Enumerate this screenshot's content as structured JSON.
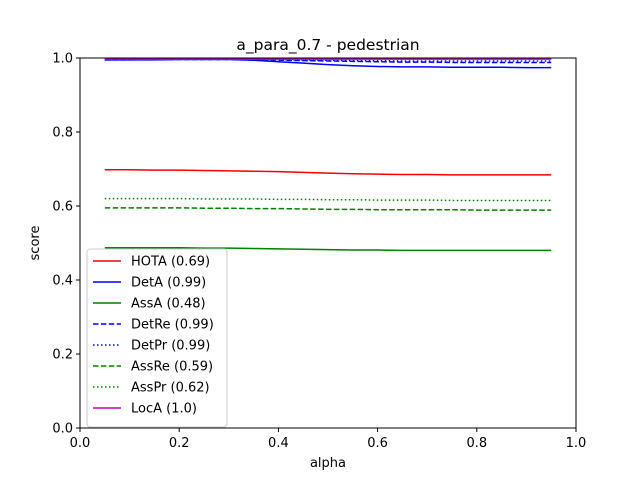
{
  "chart_data": {
    "type": "line",
    "title": "a_para_0.7 - pedestrian",
    "xlabel": "alpha",
    "ylabel": "score",
    "xlim": [
      0.0,
      1.0
    ],
    "ylim": [
      0.0,
      1.0
    ],
    "xticks": [
      "0.0",
      "0.2",
      "0.4",
      "0.6",
      "0.8",
      "1.0"
    ],
    "yticks": [
      "0.0",
      "0.2",
      "0.4",
      "0.6",
      "0.8",
      "1.0"
    ],
    "grid": false,
    "legend_position": "lower-left",
    "x": [
      0.05,
      0.1,
      0.15,
      0.2,
      0.25,
      0.3,
      0.35,
      0.4,
      0.45,
      0.5,
      0.55,
      0.6,
      0.65,
      0.7,
      0.75,
      0.8,
      0.85,
      0.9,
      0.95
    ],
    "series": [
      {
        "name": "HOTA (0.69)",
        "color": "#ff0000",
        "style": "solid",
        "values": [
          0.698,
          0.698,
          0.697,
          0.697,
          0.696,
          0.695,
          0.694,
          0.693,
          0.691,
          0.689,
          0.687,
          0.686,
          0.685,
          0.685,
          0.684,
          0.684,
          0.684,
          0.684,
          0.684
        ]
      },
      {
        "name": "DetA (0.99)",
        "color": "#0000ff",
        "style": "solid",
        "values": [
          0.995,
          0.995,
          0.995,
          0.996,
          0.996,
          0.996,
          0.994,
          0.99,
          0.986,
          0.982,
          0.979,
          0.977,
          0.976,
          0.976,
          0.975,
          0.975,
          0.975,
          0.974,
          0.974
        ]
      },
      {
        "name": "AssA (0.48)",
        "color": "#008000",
        "style": "solid",
        "values": [
          0.487,
          0.487,
          0.487,
          0.487,
          0.486,
          0.486,
          0.485,
          0.484,
          0.483,
          0.482,
          0.481,
          0.481,
          0.48,
          0.48,
          0.48,
          0.48,
          0.48,
          0.48,
          0.48
        ]
      },
      {
        "name": "DetRe (0.99)",
        "color": "#0000ff",
        "style": "dashed",
        "values": [
          0.995,
          0.995,
          0.996,
          0.996,
          0.996,
          0.996,
          0.995,
          0.994,
          0.993,
          0.992,
          0.991,
          0.99,
          0.989,
          0.989,
          0.988,
          0.988,
          0.988,
          0.988,
          0.988
        ]
      },
      {
        "name": "DetPr (0.99)",
        "color": "#0000ff",
        "style": "dotted",
        "values": [
          0.996,
          0.996,
          0.997,
          0.997,
          0.997,
          0.997,
          0.997,
          0.996,
          0.995,
          0.994,
          0.993,
          0.993,
          0.992,
          0.992,
          0.992,
          0.992,
          0.992,
          0.992,
          0.992
        ]
      },
      {
        "name": "AssRe (0.59)",
        "color": "#008000",
        "style": "dashed",
        "values": [
          0.595,
          0.595,
          0.595,
          0.595,
          0.594,
          0.594,
          0.593,
          0.593,
          0.592,
          0.591,
          0.591,
          0.59,
          0.59,
          0.59,
          0.59,
          0.589,
          0.589,
          0.589,
          0.589
        ]
      },
      {
        "name": "AssPr (0.62)",
        "color": "#008000",
        "style": "dotted",
        "values": [
          0.62,
          0.62,
          0.62,
          0.62,
          0.619,
          0.619,
          0.619,
          0.618,
          0.618,
          0.617,
          0.617,
          0.616,
          0.616,
          0.616,
          0.615,
          0.615,
          0.615,
          0.615,
          0.615
        ]
      },
      {
        "name": "LocA (1.0)",
        "color": "#bf00bf",
        "style": "solid",
        "values": [
          0.997,
          0.997,
          0.997,
          0.997,
          0.997,
          0.997,
          0.997,
          0.997,
          0.997,
          0.997,
          0.997,
          0.997,
          0.997,
          0.997,
          0.997,
          0.997,
          0.997,
          0.997,
          0.997
        ]
      }
    ]
  }
}
